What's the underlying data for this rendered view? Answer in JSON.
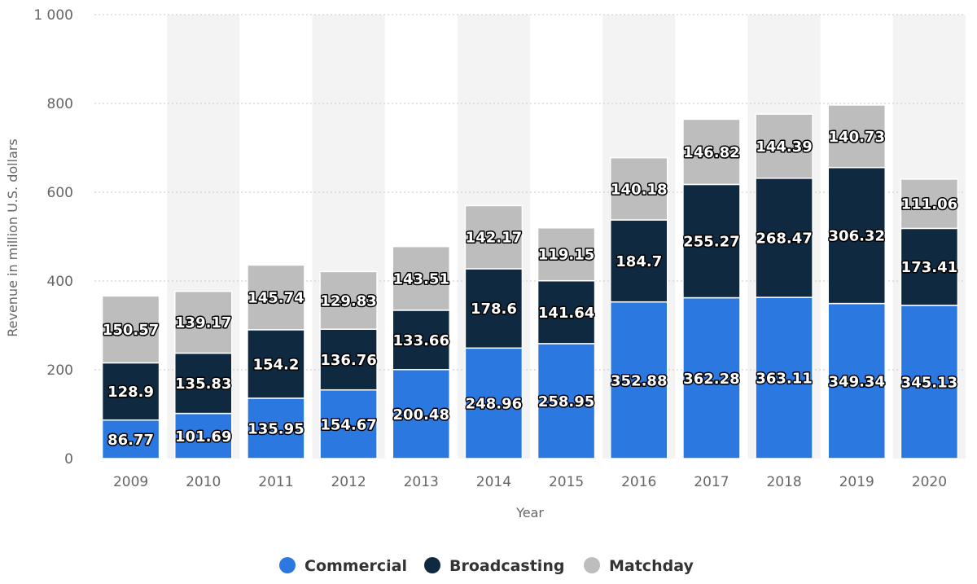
{
  "chart_data": {
    "type": "bar",
    "stacked": true,
    "title": "",
    "xlabel": "Year",
    "ylabel": "Revenue in million U.S. dollars",
    "ylim": [
      0,
      1000
    ],
    "y_ticks": [
      0,
      200,
      400,
      600,
      800,
      1000
    ],
    "y_tick_labels": [
      "0",
      "200",
      "400",
      "600",
      "800",
      "1 000"
    ],
    "grid": true,
    "legend_position": "bottom-center",
    "categories": [
      "2009",
      "2010",
      "2011",
      "2012",
      "2013",
      "2014",
      "2015",
      "2016",
      "2017",
      "2018",
      "2019",
      "2020"
    ],
    "series": [
      {
        "name": "Commercial",
        "color": "#2a78e0",
        "values": [
          86.77,
          101.69,
          135.95,
          154.67,
          200.48,
          248.96,
          258.95,
          352.88,
          362.28,
          363.11,
          349.34,
          345.13
        ],
        "labels": [
          "86.77",
          "101.69",
          "135.95",
          "154.67",
          "200.48",
          "248.96",
          "258.95",
          "352.88",
          "362.28",
          "363.11",
          "349.34",
          "345.13"
        ]
      },
      {
        "name": "Broadcasting",
        "color": "#0f2a40",
        "values": [
          128.9,
          135.83,
          154.2,
          136.76,
          133.66,
          178.6,
          141.64,
          184.7,
          255.27,
          268.47,
          306.32,
          173.41
        ],
        "labels": [
          "128.9",
          "135.83",
          "154.2",
          "136.76",
          "133.66",
          "178.6",
          "141.64",
          "184.7",
          "255.27",
          "268.47",
          "306.32",
          "173.41"
        ]
      },
      {
        "name": "Matchday",
        "color": "#bdbdbd",
        "values": [
          150.57,
          139.17,
          145.74,
          129.83,
          143.51,
          142.17,
          119.15,
          140.18,
          146.82,
          144.39,
          140.73,
          111.06
        ],
        "labels": [
          "150.57",
          "139.17",
          "145.74",
          "129.83",
          "143.51",
          "142.17",
          "119.15",
          "140.18",
          "146.82",
          "144.39",
          "140.73",
          "111.06"
        ]
      }
    ],
    "band_color": "#f3f3f3",
    "grid_color": "#c8c8c8"
  }
}
